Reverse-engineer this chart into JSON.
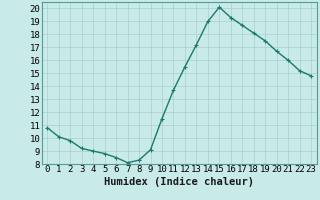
{
  "x": [
    0,
    1,
    2,
    3,
    4,
    5,
    6,
    7,
    8,
    9,
    10,
    11,
    12,
    13,
    14,
    15,
    16,
    17,
    18,
    19,
    20,
    21,
    22,
    23
  ],
  "y": [
    10.8,
    10.1,
    9.8,
    9.2,
    9.0,
    8.8,
    8.5,
    8.1,
    8.3,
    9.1,
    11.5,
    13.7,
    15.5,
    17.2,
    19.0,
    20.1,
    19.3,
    18.7,
    18.1,
    17.5,
    16.7,
    16.0,
    15.2,
    14.8
  ],
  "line_color": "#1a7a6e",
  "marker": "+",
  "bg_color": "#c8eae8",
  "grid_color": "#aacfcc",
  "xlabel": "Humidex (Indice chaleur)",
  "xlim": [
    -0.5,
    23.5
  ],
  "ylim": [
    8,
    20.5
  ],
  "yticks": [
    8,
    9,
    10,
    11,
    12,
    13,
    14,
    15,
    16,
    17,
    18,
    19,
    20
  ],
  "xticks": [
    0,
    1,
    2,
    3,
    4,
    5,
    6,
    7,
    8,
    9,
    10,
    11,
    12,
    13,
    14,
    15,
    16,
    17,
    18,
    19,
    20,
    21,
    22,
    23
  ],
  "tick_fontsize": 6.5,
  "xlabel_fontsize": 7.5,
  "linewidth": 1.0,
  "markersize": 3.5,
  "markeredgewidth": 0.8,
  "spine_color": "#5a9a94"
}
